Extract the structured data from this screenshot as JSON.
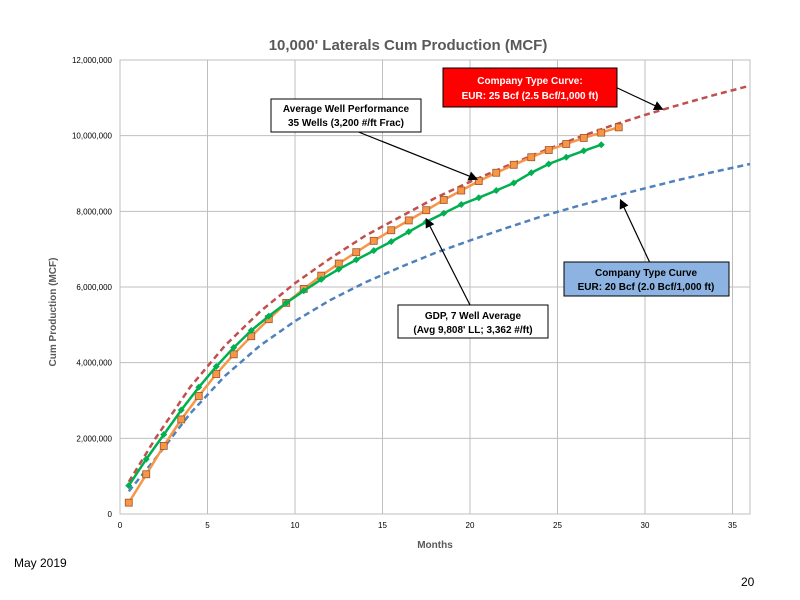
{
  "footer": {
    "date": "May 2019",
    "page": "20"
  },
  "colors": {
    "type_curve_25": "#c0504d",
    "type_curve_20": "#4f81bd",
    "avg_well": "#f79646",
    "gdp": "#00b050",
    "box_red": "#ff0000",
    "box_blue": "#8db3e2"
  },
  "chart_data": {
    "type": "line",
    "title": "10,000' Laterals Cum Production (MCF)",
    "xlabel": "Months",
    "ylabel": "Cum Production (MCF)",
    "xlim": [
      0,
      36
    ],
    "ylim": [
      0,
      12000000
    ],
    "grid": true,
    "x_ticks": [
      0,
      5,
      10,
      15,
      20,
      25,
      30,
      35
    ],
    "y_ticks": [
      {
        "v": 0,
        "label": "0"
      },
      {
        "v": 2000000,
        "label": "2,000,000"
      },
      {
        "v": 4000000,
        "label": "4,000,000"
      },
      {
        "v": 6000000,
        "label": "6,000,000"
      },
      {
        "v": 8000000,
        "label": "8,000,000"
      },
      {
        "v": 10000000,
        "label": "10,000,000"
      },
      {
        "v": 12000000,
        "label": "12,000,000"
      }
    ],
    "series": [
      {
        "key": "tc25",
        "style": "dashed",
        "x": [
          0.5,
          2,
          4,
          6,
          8,
          10,
          12,
          14,
          16,
          18,
          20,
          22,
          24,
          26,
          28,
          30,
          32,
          34,
          36
        ],
        "values": [
          850000,
          1980000,
          3350000,
          4450000,
          5350000,
          6100000,
          6750000,
          7350000,
          7850000,
          8350000,
          8780000,
          9180000,
          9560000,
          9920000,
          10250000,
          10550000,
          10820000,
          11080000,
          11320000
        ]
      },
      {
        "key": "tc20",
        "style": "dashed",
        "x": [
          0.5,
          2,
          4,
          6,
          8,
          10,
          12,
          14,
          16,
          18,
          20,
          22,
          24,
          26,
          28,
          30,
          32,
          34,
          36
        ],
        "values": [
          600000,
          1450000,
          2650000,
          3650000,
          4450000,
          5100000,
          5650000,
          6120000,
          6520000,
          6900000,
          7230000,
          7550000,
          7850000,
          8120000,
          8370000,
          8610000,
          8840000,
          9050000,
          9250000
        ]
      },
      {
        "key": "avg",
        "style": "square-markers",
        "x": [
          0.5,
          1.5,
          2.5,
          3.5,
          4.5,
          5.5,
          6.5,
          7.5,
          8.5,
          9.5,
          10.5,
          11.5,
          12.5,
          13.5,
          14.5,
          15.5,
          16.5,
          17.5,
          18.5,
          19.5,
          20.5,
          21.5,
          22.5,
          23.5,
          24.5,
          25.5,
          26.5,
          27.5,
          28.5
        ],
        "values": [
          300000,
          1050000,
          1800000,
          2500000,
          3120000,
          3700000,
          4220000,
          4700000,
          5150000,
          5580000,
          5950000,
          6300000,
          6620000,
          6920000,
          7220000,
          7500000,
          7760000,
          8030000,
          8300000,
          8550000,
          8800000,
          9020000,
          9230000,
          9430000,
          9620000,
          9780000,
          9940000,
          10080000,
          10220000
        ]
      },
      {
        "key": "gdp",
        "style": "diamond-markers",
        "x": [
          0.5,
          1.5,
          2.5,
          3.5,
          4.5,
          5.5,
          6.5,
          7.5,
          8.5,
          9.5,
          10.5,
          11.5,
          12.5,
          13.5,
          14.5,
          15.5,
          16.5,
          17.5,
          18.5,
          19.5,
          20.5,
          21.5,
          22.5,
          23.5,
          24.5,
          25.5,
          26.5,
          27.5
        ],
        "values": [
          750000,
          1450000,
          2100000,
          2750000,
          3350000,
          3900000,
          4400000,
          4850000,
          5230000,
          5580000,
          5900000,
          6200000,
          6470000,
          6720000,
          6960000,
          7200000,
          7460000,
          7720000,
          7950000,
          8180000,
          8360000,
          8550000,
          8750000,
          9020000,
          9250000,
          9430000,
          9600000,
          9760000
        ]
      }
    ],
    "annotations": [
      {
        "key": "tc25_box",
        "lines": [
          "Company Type Curve:",
          "EUR: 25 Bcf (2.5 Bcf/1,000 ft)"
        ],
        "arrow_to": [
          31,
          10700000
        ]
      },
      {
        "key": "avg_box",
        "lines": [
          "Average Well Performance",
          "35 Wells (3,200 #/ft Frac)"
        ],
        "arrow_to": [
          20.4,
          8850000
        ]
      },
      {
        "key": "tc20_box",
        "lines": [
          "Company Type Curve",
          "EUR: 20 Bcf (2.0 Bcf/1,000 ft)"
        ],
        "arrow_to": [
          28.6,
          8300000
        ]
      },
      {
        "key": "gdp_box",
        "lines": [
          "GDP, 7 Well Average",
          "(Avg 9,808' LL; 3,362 #/ft)"
        ],
        "arrow_to": [
          17.5,
          7800000
        ]
      }
    ]
  }
}
